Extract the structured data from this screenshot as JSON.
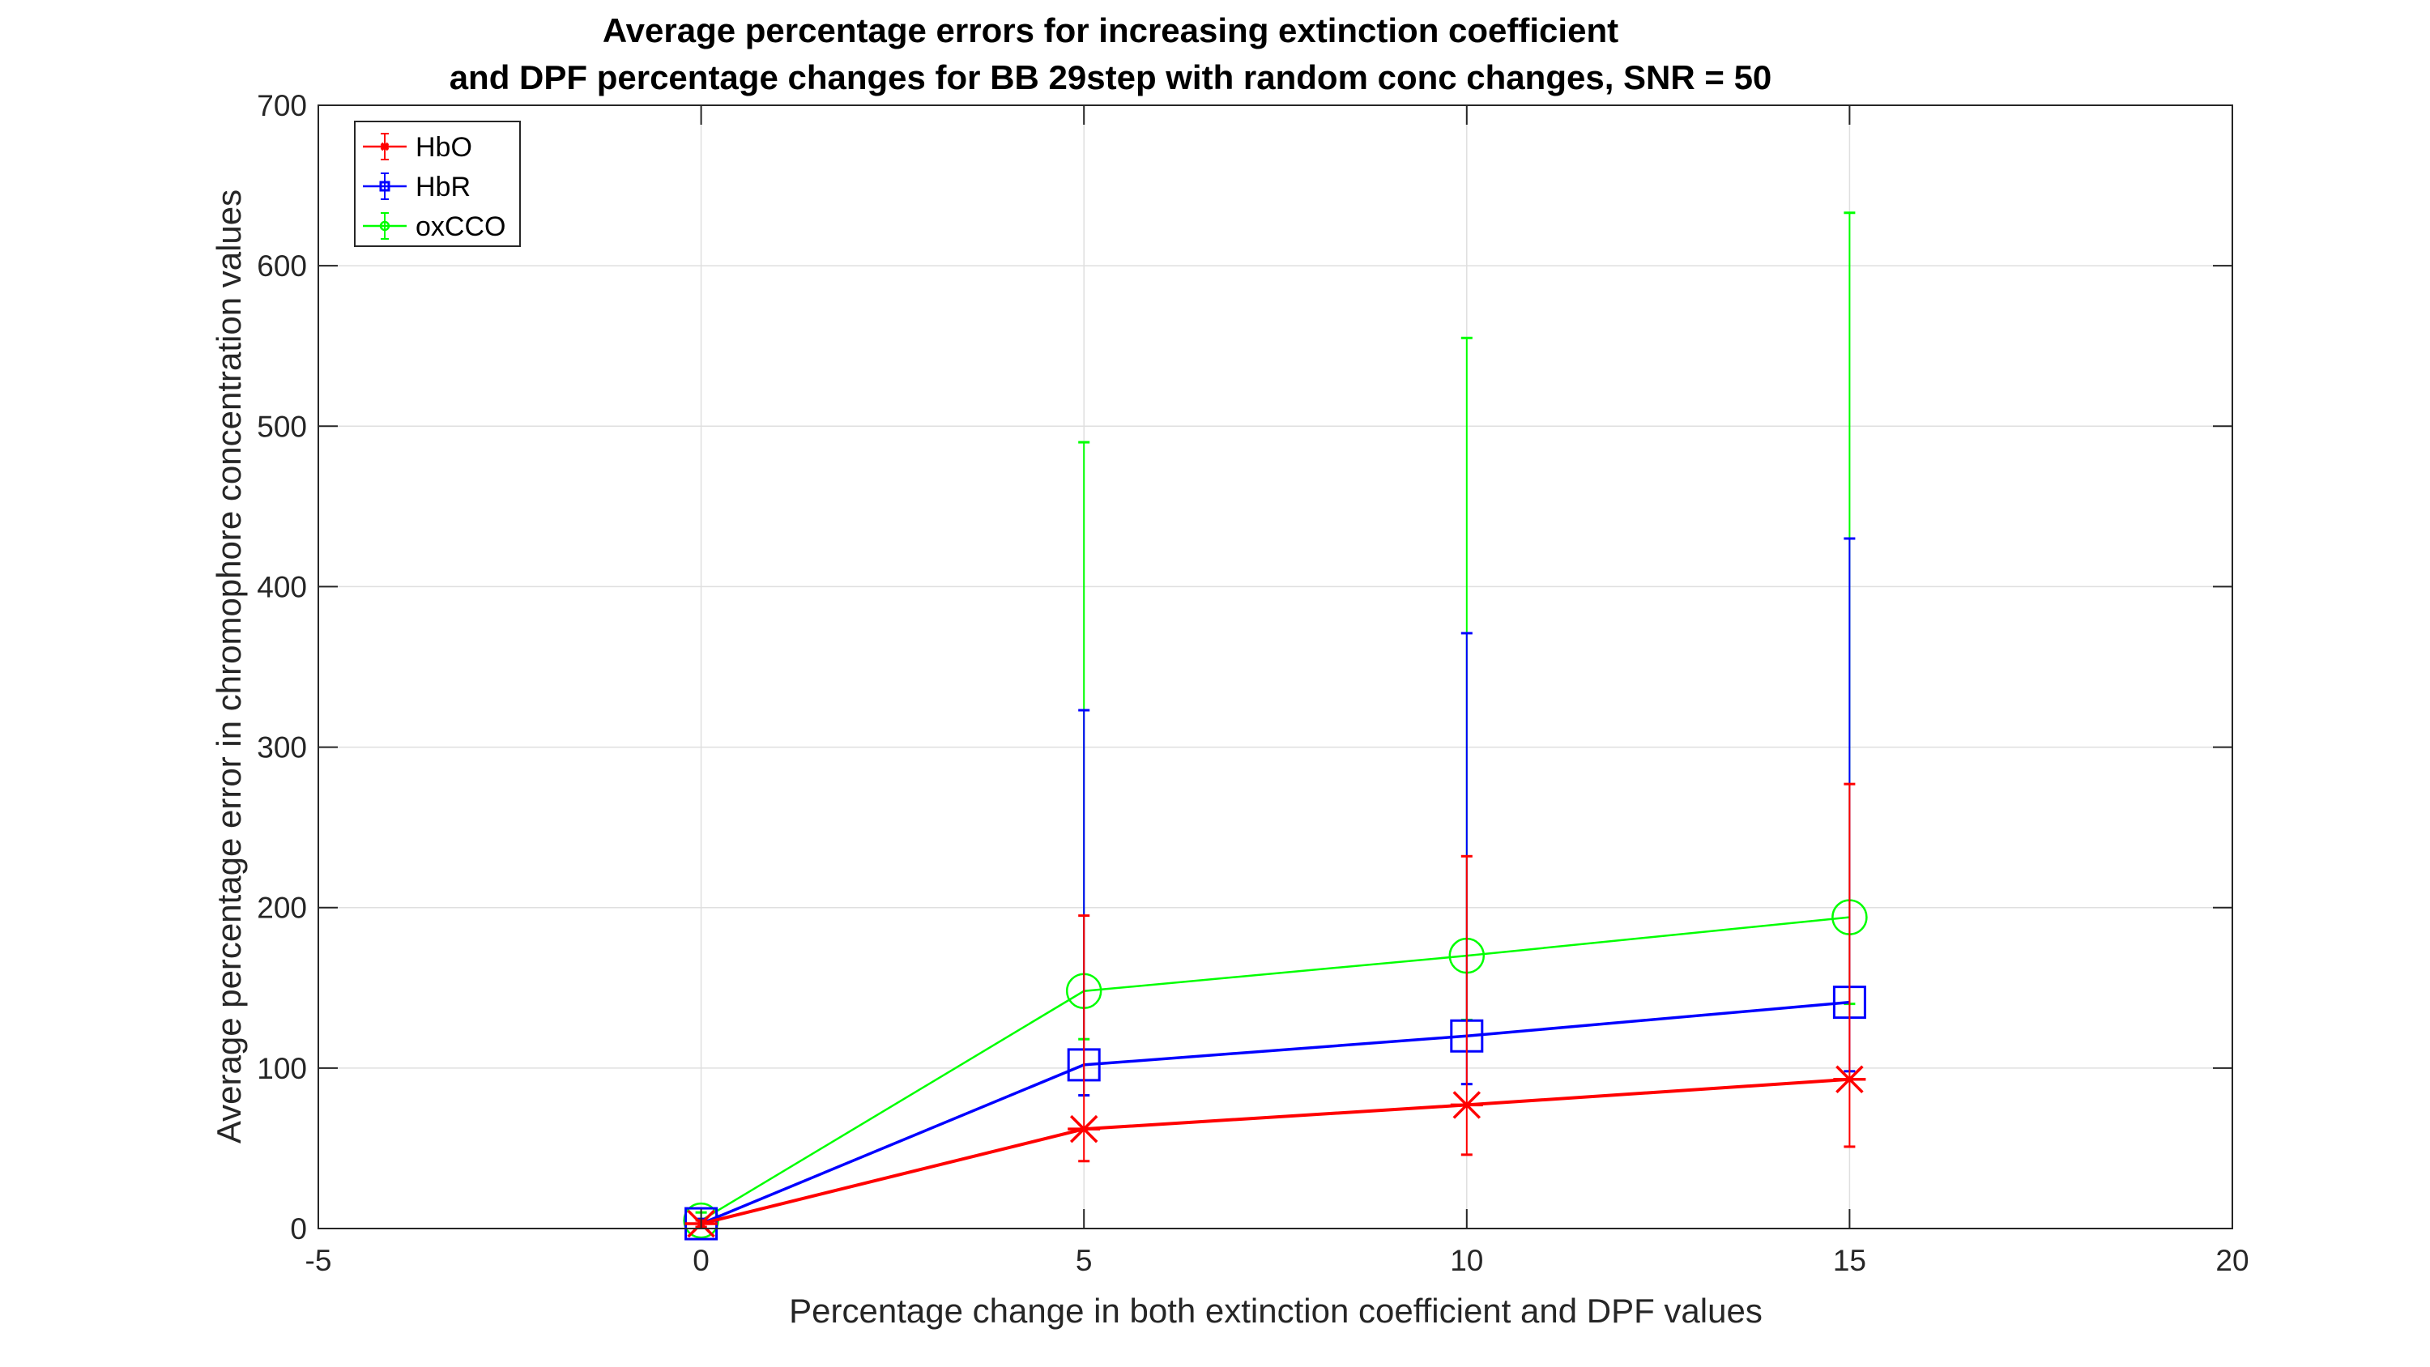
{
  "chart_data": {
    "type": "line",
    "title_line1": "Average percentage errors for increasing extinction coefficient",
    "title_line2": "and DPF percentage changes for BB 29step with random conc changes, SNR = 50",
    "xlabel": "Percentage change in both extinction coefficient and DPF values",
    "ylabel": "Average percentage error in chromophore concentration values",
    "xlim": [
      -5,
      20
    ],
    "ylim": [
      0,
      700
    ],
    "xticks": [
      -5,
      0,
      5,
      10,
      15,
      20
    ],
    "yticks": [
      0,
      100,
      200,
      300,
      400,
      500,
      600,
      700
    ],
    "grid": true,
    "legend_position": "top-left",
    "x": [
      0,
      5,
      10,
      15
    ],
    "series": [
      {
        "name": "HbO",
        "color": "#ff0000",
        "marker": "asterisk",
        "values": [
          3,
          62,
          77,
          93
        ],
        "err_low": [
          1,
          42,
          46,
          51
        ],
        "err_high": [
          5,
          195,
          232,
          277
        ]
      },
      {
        "name": "HbR",
        "color": "#0000ff",
        "marker": "square",
        "values": [
          3,
          102,
          120,
          141
        ],
        "err_low": [
          1,
          83,
          90,
          98
        ],
        "err_high": [
          6,
          323,
          371,
          430
        ]
      },
      {
        "name": "oxCCO",
        "color": "#00ff00",
        "marker": "circle",
        "values": [
          5,
          148,
          170,
          194
        ],
        "err_low": [
          1,
          118,
          130,
          140
        ],
        "err_high": [
          10,
          490,
          555,
          633
        ]
      }
    ]
  }
}
